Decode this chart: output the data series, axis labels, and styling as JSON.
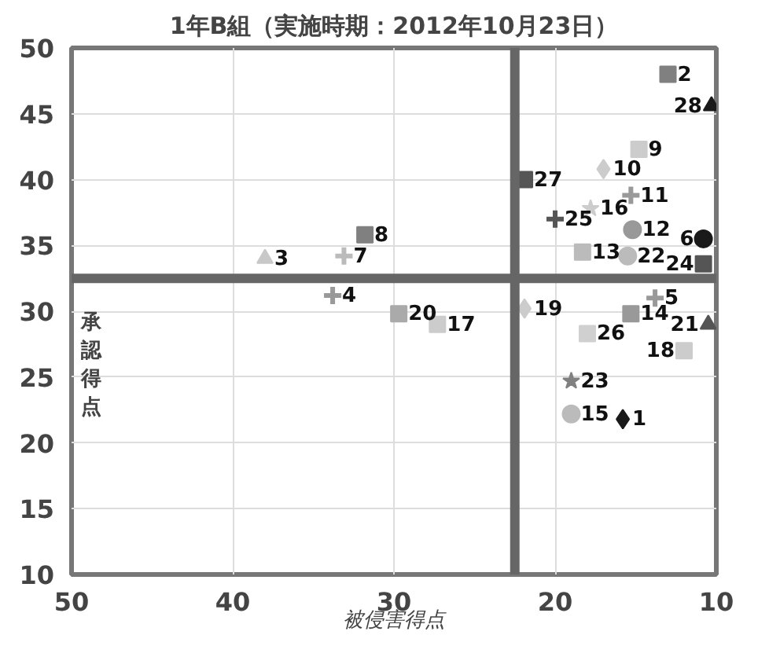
{
  "chart_data": {
    "type": "scatter",
    "title": "1年B組（実施時期：2012年10月23日）",
    "xlabel": "被侵害得点",
    "ylabel": "承認得点",
    "xlim": [
      50,
      10
    ],
    "xticks": [
      50,
      40,
      30,
      20,
      10
    ],
    "ylim": [
      10,
      50
    ],
    "yticks": [
      10,
      15,
      20,
      25,
      30,
      35,
      40,
      45,
      50
    ],
    "grid": true,
    "ref_lines": [
      {
        "axis": "x",
        "value": 22.5,
        "color": "#666666"
      },
      {
        "axis": "y",
        "value": 32.5,
        "color": "#666666"
      }
    ],
    "series": [
      {
        "name": "1",
        "color": "#1a1a1a",
        "marker": "diamond",
        "x": [
          15.8
        ],
        "values": [
          21.8
        ]
      },
      {
        "name": "2",
        "color": "#808080",
        "marker": "square",
        "x": [
          13
        ],
        "values": [
          48
        ]
      },
      {
        "name": "3",
        "color": "#c8c8c8",
        "marker": "triangle",
        "x": [
          38
        ],
        "values": [
          34
        ]
      },
      {
        "name": "4",
        "color": "#999999",
        "marker": "cross",
        "x": [
          33.8
        ],
        "values": [
          31.2
        ]
      },
      {
        "name": "5",
        "color": "#999999",
        "marker": "cross",
        "x": [
          13.8
        ],
        "values": [
          31
        ]
      },
      {
        "name": "6",
        "color": "#1a1a1a",
        "marker": "circle",
        "x": [
          10.8
        ],
        "values": [
          35.5
        ]
      },
      {
        "name": "7",
        "color": "#bbbbbb",
        "marker": "cross",
        "x": [
          33.1
        ],
        "values": [
          34.2
        ]
      },
      {
        "name": "8",
        "color": "#808080",
        "marker": "square",
        "x": [
          31.8
        ],
        "values": [
          35.8
        ]
      },
      {
        "name": "9",
        "color": "#cccccc",
        "marker": "square",
        "x": [
          14.8
        ],
        "values": [
          42.3
        ]
      },
      {
        "name": "10",
        "color": "#cccccc",
        "marker": "diamond",
        "x": [
          17
        ],
        "values": [
          40.8
        ]
      },
      {
        "name": "11",
        "color": "#999999",
        "marker": "cross",
        "x": [
          15.3
        ],
        "values": [
          38.8
        ]
      },
      {
        "name": "12",
        "color": "#999999",
        "marker": "circle",
        "x": [
          15.2
        ],
        "values": [
          36.2
        ]
      },
      {
        "name": "13",
        "color": "#bbbbbb",
        "marker": "square",
        "x": [
          18.3
        ],
        "values": [
          34.5
        ]
      },
      {
        "name": "14",
        "color": "#999999",
        "marker": "square",
        "x": [
          15.3
        ],
        "values": [
          29.8
        ]
      },
      {
        "name": "15",
        "color": "#bbbbbb",
        "marker": "circle",
        "x": [
          19
        ],
        "values": [
          22.2
        ]
      },
      {
        "name": "16",
        "color": "#cccccc",
        "marker": "star",
        "x": [
          17.8
        ],
        "values": [
          37.8
        ]
      },
      {
        "name": "17",
        "color": "#cccccc",
        "marker": "square",
        "x": [
          27.3
        ],
        "values": [
          29
        ]
      },
      {
        "name": "18",
        "color": "#cccccc",
        "marker": "square",
        "x": [
          12
        ],
        "values": [
          27
        ]
      },
      {
        "name": "19",
        "color": "#cccccc",
        "marker": "diamond",
        "x": [
          21.9
        ],
        "values": [
          30.2
        ]
      },
      {
        "name": "20",
        "color": "#aaaaaa",
        "marker": "square",
        "x": [
          29.7
        ],
        "values": [
          29.8
        ]
      },
      {
        "name": "21",
        "color": "#555555",
        "marker": "triangle",
        "x": [
          10.5
        ],
        "values": [
          29
        ]
      },
      {
        "name": "22",
        "color": "#bbbbbb",
        "marker": "circle",
        "x": [
          15.5
        ],
        "values": [
          34.2
        ]
      },
      {
        "name": "23",
        "color": "#808080",
        "marker": "star",
        "x": [
          19
        ],
        "values": [
          24.7
        ]
      },
      {
        "name": "24",
        "color": "#555555",
        "marker": "square",
        "x": [
          10.8
        ],
        "values": [
          33.6
        ]
      },
      {
        "name": "25",
        "color": "#555555",
        "marker": "cross",
        "x": [
          20
        ],
        "values": [
          37
        ]
      },
      {
        "name": "26",
        "color": "#d0d0d0",
        "marker": "square",
        "x": [
          18
        ],
        "values": [
          28.3
        ]
      },
      {
        "name": "27",
        "color": "#555555",
        "marker": "square",
        "x": [
          21.9
        ],
        "values": [
          40
        ]
      },
      {
        "name": "28",
        "color": "#1a1a1a",
        "marker": "triangle",
        "x": [
          10.3
        ],
        "values": [
          45.6
        ]
      }
    ]
  }
}
